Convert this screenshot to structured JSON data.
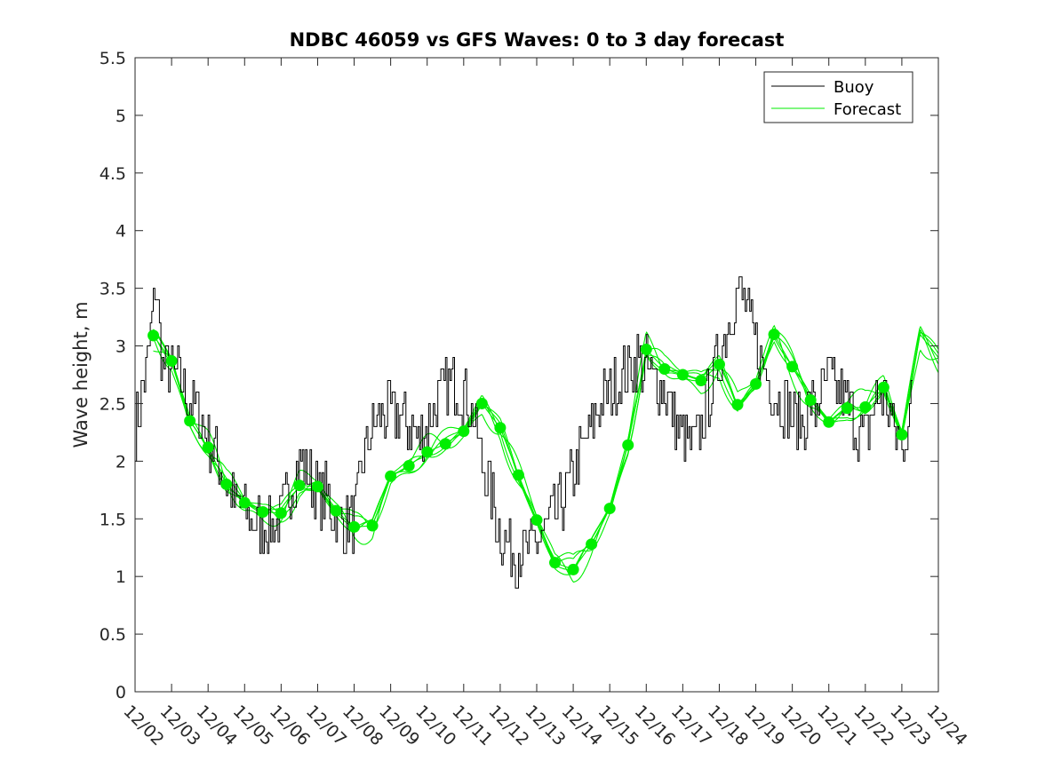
{
  "chart_data": {
    "type": "line",
    "title": "NDBC 46059 vs GFS Waves: 0 to 3 day forecast",
    "xlabel": "",
    "ylabel": "Wave height, m",
    "xlim": [
      0,
      22
    ],
    "ylim": [
      0,
      5.5
    ],
    "x_tick_labels": [
      "12/02",
      "12/03",
      "12/04",
      "12/05",
      "12/06",
      "12/07",
      "12/08",
      "12/09",
      "12/10",
      "12/11",
      "12/12",
      "12/13",
      "12/14",
      "12/15",
      "12/16",
      "12/17",
      "12/18",
      "12/19",
      "12/20",
      "12/21",
      "12/22",
      "12/23",
      "12/24"
    ],
    "y_tick_labels": [
      "0",
      "0.5",
      "1",
      "1.5",
      "2",
      "2.5",
      "3",
      "3.5",
      "4",
      "4.5",
      "5",
      "5.5"
    ],
    "legend": {
      "position": "top-right",
      "entries": [
        "Buoy",
        "Forecast"
      ]
    },
    "colors": {
      "buoy": "#000000",
      "forecast": "#00ee00",
      "axis": "#262626"
    },
    "series": [
      {
        "name": "Buoy",
        "x_start": 0,
        "x_end": 21.3,
        "x": [
          0,
          0.25,
          0.5,
          0.55,
          0.6,
          0.65,
          0.7,
          0.75,
          1,
          1.25,
          1.5,
          1.75,
          2,
          2.25,
          2.5,
          2.75,
          3,
          3.25,
          3.5,
          3.75,
          4,
          4.25,
          4.5,
          4.75,
          5,
          5.25,
          5.5,
          5.75,
          6,
          6.25,
          6.5,
          6.75,
          7,
          7.25,
          7.5,
          7.75,
          8,
          8.25,
          8.5,
          8.75,
          9,
          9.25,
          9.5,
          9.75,
          10,
          10.25,
          10.5,
          10.75,
          11,
          11.25,
          11.5,
          11.75,
          12,
          12.25,
          12.5,
          12.75,
          13,
          13.25,
          13.5,
          13.75,
          14,
          14.25,
          14.5,
          14.75,
          15,
          15.25,
          15.5,
          15.75,
          16,
          16.25,
          16.5,
          16.75,
          17,
          17.25,
          17.5,
          17.75,
          18,
          18.25,
          18.5,
          18.6,
          18.75,
          19,
          19.25,
          19.5,
          19.75,
          20,
          20.25,
          20.5,
          20.75,
          21,
          21.3
        ],
        "values": [
          2.3,
          2.7,
          3.3,
          3.6,
          3.4,
          3.2,
          3.0,
          2.8,
          2.8,
          2.7,
          2.5,
          2.4,
          2.2,
          2.0,
          1.8,
          1.6,
          1.55,
          1.45,
          1.45,
          1.45,
          1.5,
          1.8,
          2.0,
          1.9,
          1.7,
          1.7,
          1.5,
          1.45,
          1.5,
          2.0,
          2.3,
          2.4,
          2.4,
          2.4,
          2.3,
          2.2,
          2.3,
          2.5,
          2.6,
          2.7,
          2.6,
          2.4,
          2.0,
          1.7,
          1.4,
          1.25,
          1.2,
          1.2,
          1.3,
          1.45,
          1.5,
          1.7,
          1.9,
          2.1,
          2.3,
          2.5,
          2.6,
          2.7,
          2.8,
          2.9,
          2.8,
          2.7,
          2.6,
          2.4,
          2.2,
          2.1,
          2.3,
          2.6,
          2.9,
          3.2,
          3.5,
          3.3,
          3.0,
          2.8,
          2.6,
          2.5,
          2.4,
          2.3,
          2.5,
          2.4,
          2.6,
          2.7,
          2.6,
          2.5,
          2.3,
          2.2,
          2.5,
          2.6,
          2.3,
          2.1,
          2.6
        ]
      },
      {
        "name": "Forecast",
        "x": [
          0.5,
          1,
          1.5,
          2,
          2.5,
          3,
          3.5,
          4,
          4.5,
          5,
          5.5,
          6,
          6.5,
          7,
          7.5,
          8,
          8.5,
          9,
          9.5,
          10,
          10.5,
          11,
          11.5,
          12,
          12.5,
          13,
          13.5,
          14,
          14.5,
          15,
          15.5,
          16,
          16.5,
          17,
          17.5,
          18,
          18.5,
          19,
          19.5,
          20,
          20.5,
          21,
          21.5,
          22
        ],
        "values": [
          3.09,
          2.87,
          2.35,
          2.12,
          1.8,
          1.64,
          1.56,
          1.55,
          1.79,
          1.78,
          1.57,
          1.43,
          1.44,
          1.87,
          1.96,
          2.08,
          2.15,
          2.26,
          2.5,
          2.29,
          1.88,
          1.49,
          1.12,
          1.06,
          1.28,
          1.59,
          2.14,
          2.97,
          2.8,
          2.75,
          2.7,
          2.84,
          2.49,
          2.67,
          3.1,
          2.82,
          2.53,
          2.34,
          2.46,
          2.47,
          2.64,
          2.23,
          3.1,
          2.9
        ]
      }
    ],
    "forecast_markers": {
      "x": [
        0.5,
        1,
        1.5,
        2,
        2.5,
        3,
        3.5,
        4,
        4.5,
        5,
        5.5,
        6,
        6.5,
        7,
        7.5,
        8,
        8.5,
        9,
        9.5,
        10,
        10.5,
        11,
        11.5,
        12,
        12.5,
        13,
        13.5,
        14,
        14.5,
        15,
        15.5,
        16,
        16.5,
        17,
        17.5,
        18,
        18.5,
        19,
        19.5,
        20,
        20.5,
        21
      ],
      "values": [
        3.09,
        2.87,
        2.35,
        2.12,
        1.8,
        1.64,
        1.56,
        1.55,
        1.79,
        1.78,
        1.57,
        1.43,
        1.44,
        1.87,
        1.96,
        2.08,
        2.15,
        2.26,
        2.5,
        2.29,
        1.88,
        1.49,
        1.12,
        1.06,
        1.28,
        1.59,
        2.14,
        2.97,
        2.8,
        2.75,
        2.7,
        2.84,
        2.49,
        2.67,
        3.1,
        2.82,
        2.53,
        2.34,
        2.46,
        2.47,
        2.64,
        2.23
      ]
    }
  }
}
